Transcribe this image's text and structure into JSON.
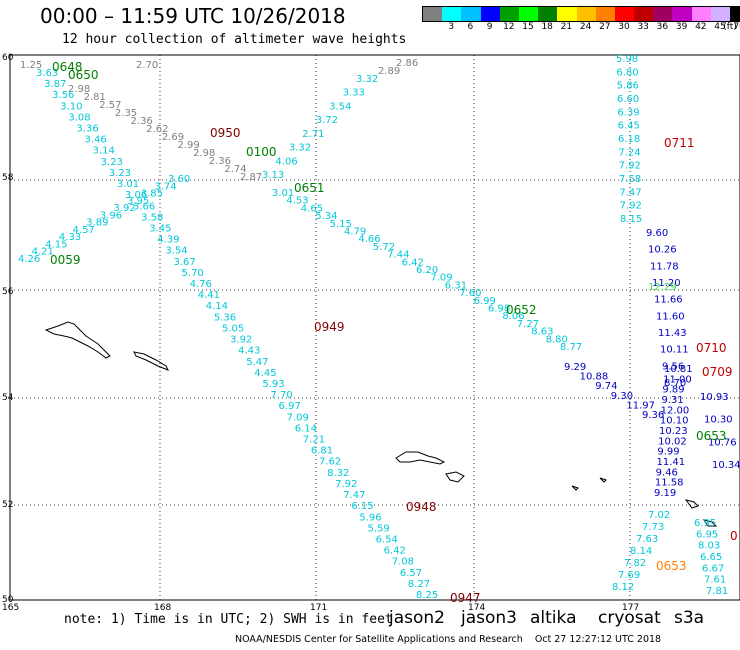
{
  "header": {
    "title": "00:00 – 11:59 UTC 10/26/2018",
    "subtitle": "12 hour collection of altimeter wave heights"
  },
  "legend": {
    "unit": "(ft)",
    "colors": [
      "#808080",
      "#00ffff",
      "#00c0ff",
      "#0000ff",
      "#00a000",
      "#00ff00",
      "#008000",
      "#ffff00",
      "#ffc000",
      "#ff8000",
      "#ff0000",
      "#c00000",
      "#a00060",
      "#c000c0",
      "#ff80ff",
      "#d0b0ff",
      "#000000"
    ],
    "labels": [
      "3",
      "6",
      "9",
      "12",
      "15",
      "18",
      "21",
      "24",
      "27",
      "30",
      "33",
      "36",
      "39",
      "42",
      "45",
      "70"
    ]
  },
  "axes": {
    "lat_labels": [
      "60",
      "58",
      "56",
      "54",
      "52",
      "50"
    ],
    "lon_labels": [
      "165",
      "168",
      "171",
      "174",
      "177"
    ]
  },
  "time_labels": [
    {
      "text": "0648",
      "color": "#008000"
    },
    {
      "text": "0650",
      "color": "#008000"
    },
    {
      "text": "0950",
      "color": "#800000"
    },
    {
      "text": "0100",
      "color": "#008000"
    },
    {
      "text": "0651",
      "color": "#008000"
    },
    {
      "text": "0059",
      "color": "#008000"
    },
    {
      "text": "0652",
      "color": "#008000"
    },
    {
      "text": "0949",
      "color": "#800000"
    },
    {
      "text": "0711",
      "color": "#c00000"
    },
    {
      "text": "0710",
      "color": "#c00000"
    },
    {
      "text": "0709",
      "color": "#c00000"
    },
    {
      "text": "0653",
      "color": "#008000"
    },
    {
      "text": "0948",
      "color": "#800000"
    },
    {
      "text": "0947",
      "color": "#800000"
    },
    {
      "text": "0653",
      "color": "#ff8000"
    },
    {
      "text": "0",
      "color": "#c00000"
    }
  ],
  "track_values": {
    "gray_track": [
      "1.25",
      "2.70",
      "2.86",
      "2.89",
      "2.98",
      "2.81",
      "2.57",
      "2.35",
      "2.36",
      "2.62",
      "2.69",
      "2.99",
      "2.98",
      "2.36",
      "2.74",
      "2.87"
    ],
    "cyan_nw_se": [
      "3.63",
      "3.87",
      "3.56",
      "3.10",
      "3.08",
      "3.36",
      "3.46",
      "3.14",
      "3.23",
      "3.23",
      "3.01",
      "3.06",
      "3.66",
      "3.58",
      "3.45",
      "4.39",
      "3.54",
      "3.67",
      "5.70",
      "4.76",
      "4.41",
      "4.14",
      "5.36",
      "5.05",
      "3.92",
      "4.43",
      "5.47",
      "4.45",
      "5.93",
      "7.70",
      "6.97",
      "7.09",
      "6.14",
      "7.21",
      "6.81",
      "7.62",
      "8.32",
      "7.92",
      "7.47",
      "6.15",
      "5.96",
      "5.59",
      "6.54",
      "6.42",
      "7.08",
      "6.57",
      "8.27",
      "8.25"
    ],
    "cyan_sw_ne": [
      "3.32",
      "3.33",
      "3.54",
      "3.72",
      "2.71",
      "3.32",
      "4.06",
      "3.13",
      "3.01",
      "4.53",
      "4.65",
      "5.34",
      "5.15",
      "4.79",
      "4.66",
      "5.72",
      "7.44",
      "6.42",
      "6.20",
      "7.09",
      "6.31",
      "7.60",
      "6.99",
      "6.98",
      "8.06",
      "7.27",
      "8.63",
      "8.80",
      "8.77"
    ],
    "cyan_east": [
      "5.98",
      "6.80",
      "5.86",
      "6.60",
      "6.39",
      "6.45",
      "6.18",
      "7.24",
      "7.92",
      "7.58",
      "7.47",
      "7.92",
      "8.15",
      "7.02",
      "7.73",
      "7.63",
      "8.14",
      "7.82",
      "7.69",
      "8.12",
      "6.95",
      "6.95",
      "8.03",
      "6.65",
      "6.67",
      "7.61",
      "7.81"
    ],
    "blue_east": [
      "9.60",
      "10.26",
      "11.78",
      "11.20",
      "11.66",
      "11.60",
      "11.43",
      "10.11",
      "9.56",
      "8.70",
      "10.81",
      "11.00",
      "9.89",
      "9.31",
      "12.00",
      "10.10",
      "10.23",
      "10.02",
      "9.99",
      "11.41",
      "9.46",
      "11.58",
      "9.19",
      "9.29",
      "10.88",
      "9.74",
      "9.30",
      "11.97",
      "9.36",
      "10.93",
      "10.30",
      "10.76",
      "10.34"
    ],
    "green_value": [
      "12.29"
    ]
  },
  "footer": {
    "note": "note:  1) Time is in UTC;  2) SWH is in feet",
    "satellites": [
      {
        "name": "jason2",
        "color": "#0000ff"
      },
      {
        "name": "jason3",
        "color": "#008000"
      },
      {
        "name": "altika",
        "color": "#ff8000"
      },
      {
        "name": "cryosat",
        "color": "#ff0000"
      },
      {
        "name": "s3a",
        "color": "#c00000"
      }
    ],
    "credit_left": "NOAA/NESDIS Center for Satellite Applications and Research",
    "credit_right": "Oct 27 12:27:12 UTC 2018"
  }
}
